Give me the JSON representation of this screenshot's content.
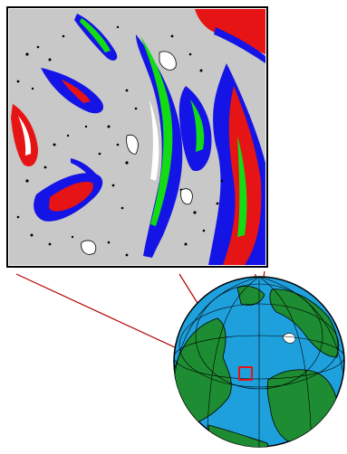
{
  "figure": {
    "kind": "map-inset-illustration",
    "parts": [
      "detail-map",
      "globe",
      "callout-lines",
      "region-marker"
    ],
    "colors": {
      "background": "#c8c8c8",
      "blue": "#1414e6",
      "green": "#14dc14",
      "red": "#e61414",
      "ocean": "#1ea0dc",
      "land": "#1e8c32",
      "callout": "#b40000",
      "frame": "#000000"
    }
  }
}
